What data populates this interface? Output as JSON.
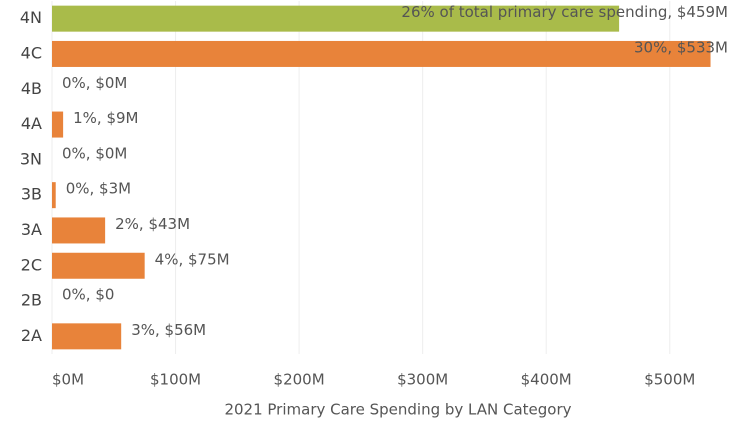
{
  "chart_data": {
    "type": "bar",
    "orientation": "horizontal",
    "x_label": "2021 Primary Care Spending by LAN Category",
    "categories": [
      "4N",
      "4C",
      "4B",
      "4A",
      "3N",
      "3B",
      "3A",
      "2C",
      "2B",
      "2A"
    ],
    "values": [
      459,
      533,
      0,
      9,
      0,
      3,
      43,
      75,
      0,
      56
    ],
    "value_labels": [
      "26% of total primary care spending, $459M",
      "30%, $533M",
      "0%, $0M",
      "1%, $9M",
      "0%, $0M",
      "0%, $3M",
      "2%, $43M",
      "4%, $75M",
      "0%, $0",
      "3%, $56M"
    ],
    "colors": [
      "#a9bb4a",
      "#e8833a",
      "#e8833a",
      "#e8833a",
      "#e8833a",
      "#e8833a",
      "#e8833a",
      "#e8833a",
      "#e8833a",
      "#e8833a"
    ],
    "xlim": [
      0,
      552
    ],
    "xticks": [
      {
        "value": 0,
        "label": "$0M"
      },
      {
        "value": 100,
        "label": "$100M"
      },
      {
        "value": 200,
        "label": "$200M"
      },
      {
        "value": 300,
        "label": "$300M"
      },
      {
        "value": 400,
        "label": "$400M"
      },
      {
        "value": 500,
        "label": "$500M"
      }
    ],
    "grid": true
  }
}
